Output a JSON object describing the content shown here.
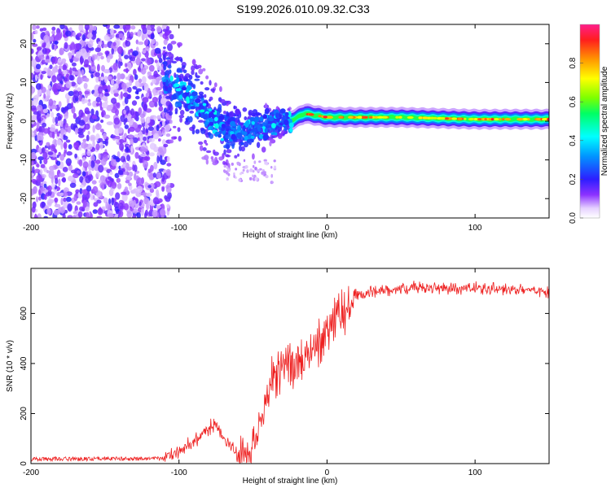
{
  "title": "S199.2026.010.09.32.C33",
  "chart_data": [
    {
      "type": "heatmap",
      "name": "spectrogram",
      "xlabel": "Height of straight line (km)",
      "ylabel": "Frequency (Hz)",
      "xlim": [
        -200,
        150
      ],
      "ylim": [
        -25,
        25
      ],
      "xticks": [
        -200,
        -100,
        0,
        100
      ],
      "yticks": [
        -20,
        -10,
        0,
        10,
        20
      ],
      "colorbar": {
        "label": "Normalized spectral amplitude",
        "range": [
          0,
          1
        ],
        "ticks": [
          0.0,
          0.2,
          0.4,
          0.6,
          0.8
        ]
      },
      "features": {
        "noise_region_x": [
          -200,
          -110
        ],
        "transition_region_x": [
          -110,
          -25
        ],
        "carrier_track": [
          {
            "x": -105,
            "y": 9
          },
          {
            "x": -90,
            "y": 5
          },
          {
            "x": -80,
            "y": 1
          },
          {
            "x": -70,
            "y": -2
          },
          {
            "x": -55,
            "y": -3
          },
          {
            "x": -40,
            "y": -1
          },
          {
            "x": -25,
            "y": 0
          },
          {
            "x": -15,
            "y": 2
          },
          {
            "x": 0,
            "y": 1
          },
          {
            "x": 50,
            "y": 1
          },
          {
            "x": 100,
            "y": 0.5
          },
          {
            "x": 150,
            "y": 0.5
          }
        ]
      }
    },
    {
      "type": "line",
      "name": "snr",
      "xlabel": "Height of straight line (km)",
      "ylabel": "SNR (10 * v/v)",
      "xlim": [
        -200,
        150
      ],
      "ylim": [
        0,
        780
      ],
      "xticks": [
        -200,
        -100,
        0,
        100
      ],
      "yticks": [
        0,
        200,
        400,
        600
      ],
      "color": "#ee2020",
      "profile": [
        {
          "x": -200,
          "y": 18
        },
        {
          "x": -110,
          "y": 20
        },
        {
          "x": -100,
          "y": 45
        },
        {
          "x": -90,
          "y": 85
        },
        {
          "x": -80,
          "y": 140
        },
        {
          "x": -75,
          "y": 150
        },
        {
          "x": -70,
          "y": 100
        },
        {
          "x": -60,
          "y": 30
        },
        {
          "x": -50,
          "y": 35
        },
        {
          "x": -45,
          "y": 150
        },
        {
          "x": -40,
          "y": 300
        },
        {
          "x": -30,
          "y": 380
        },
        {
          "x": -20,
          "y": 400
        },
        {
          "x": -10,
          "y": 460
        },
        {
          "x": 0,
          "y": 540
        },
        {
          "x": 10,
          "y": 600
        },
        {
          "x": 20,
          "y": 660
        },
        {
          "x": 30,
          "y": 690
        },
        {
          "x": 50,
          "y": 700
        },
        {
          "x": 100,
          "y": 700
        },
        {
          "x": 150,
          "y": 690
        }
      ]
    }
  ]
}
